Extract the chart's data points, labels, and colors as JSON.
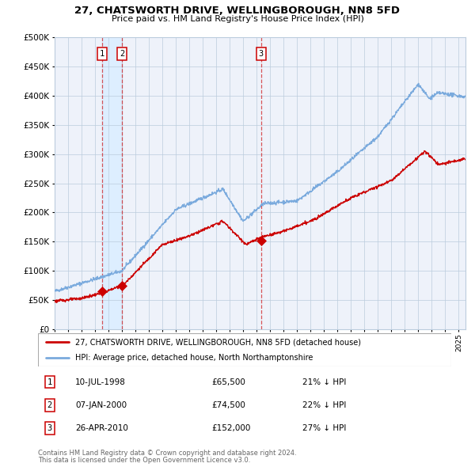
{
  "title": "27, CHATSWORTH DRIVE, WELLINGBOROUGH, NN8 5FD",
  "subtitle": "Price paid vs. HM Land Registry's House Price Index (HPI)",
  "legend_line1": "27, CHATSWORTH DRIVE, WELLINGBOROUGH, NN8 5FD (detached house)",
  "legend_line2": "HPI: Average price, detached house, North Northamptonshire",
  "footer1": "Contains HM Land Registry data © Crown copyright and database right 2024.",
  "footer2": "This data is licensed under the Open Government Licence v3.0.",
  "transactions": [
    {
      "num": 1,
      "date": "10-JUL-1998",
      "year": 1998.53,
      "price": 65500,
      "label": "21% ↓ HPI"
    },
    {
      "num": 2,
      "date": "07-JAN-2000",
      "year": 2000.02,
      "price": 74500,
      "label": "22% ↓ HPI"
    },
    {
      "num": 3,
      "date": "26-APR-2010",
      "year": 2010.32,
      "price": 152000,
      "label": "27% ↓ HPI"
    }
  ],
  "hpi_color": "#7aaadd",
  "price_color": "#cc0000",
  "vline_color": "#cc0000",
  "vspan_color": "#ddeeff",
  "grid_color": "#bbccdd",
  "plot_bg": "#eef2fa",
  "ylim": [
    0,
    500000
  ],
  "xlim_start": 1995.0,
  "xlim_end": 2025.5,
  "ytick_step": 50000
}
